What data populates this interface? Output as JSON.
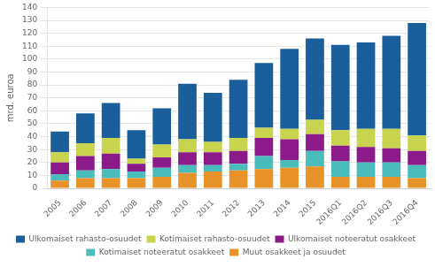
{
  "chart_data": {
    "type": "bar",
    "stacked": true,
    "ylabel": "mrd. euroa",
    "categories": [
      "2005",
      "2006",
      "2007",
      "2008",
      "2009",
      "2010",
      "2011",
      "2012",
      "2013",
      "2014",
      "2015",
      "2016Q1",
      "2016Q2",
      "2016Q3",
      "2016Q4"
    ],
    "series": [
      {
        "name": "Muut osakkeet ja osuudet",
        "color": "#e8922a",
        "values": [
          6,
          8,
          8,
          8,
          9,
          12,
          13,
          14,
          15,
          16,
          17,
          9,
          9,
          9,
          8
        ]
      },
      {
        "name": "Kotimaiset noteeratut osakkeet",
        "color": "#4bbcbc",
        "values": [
          5,
          6,
          7,
          5,
          7,
          6,
          5,
          5,
          10,
          6,
          12,
          12,
          11,
          11,
          10
        ]
      },
      {
        "name": "Ulkomaiset noteeratut osakkeet",
        "color": "#8b1a8b",
        "values": [
          9,
          11,
          12,
          6,
          8,
          10,
          10,
          10,
          14,
          16,
          13,
          12,
          12,
          11,
          11
        ]
      },
      {
        "name": "Kotimaiset rahasto-osuudet",
        "color": "#c8d44e",
        "values": [
          8,
          10,
          12,
          4,
          10,
          10,
          8,
          10,
          8,
          8,
          11,
          12,
          14,
          15,
          12
        ]
      },
      {
        "name": "Ulkomaiset rahasto-osuudet",
        "color": "#1a5f9c",
        "values": [
          16,
          23,
          27,
          22,
          28,
          43,
          38,
          45,
          50,
          62,
          63,
          66,
          67,
          72,
          87
        ]
      }
    ],
    "ylim": [
      0,
      140
    ],
    "yticks": [
      0,
      10,
      20,
      30,
      40,
      50,
      60,
      70,
      80,
      90,
      100,
      110,
      120,
      130,
      140
    ],
    "grid": true,
    "legend": "bottom"
  }
}
